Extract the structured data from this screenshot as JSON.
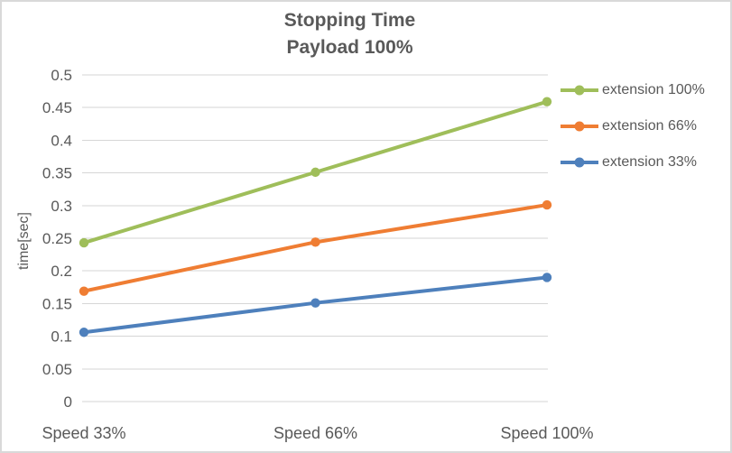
{
  "window": {
    "background": "#FFFFFF",
    "border_color": "#D9D9D9"
  },
  "chart_data": {
    "type": "line",
    "title": "Stopping Time",
    "subtitle": "Payload 100%",
    "xlabel": "",
    "ylabel": "time[sec]",
    "categories": [
      "Speed 33%",
      "Speed 66%",
      "Speed 100%"
    ],
    "series": [
      {
        "name": "extension 100%",
        "color": "#9FBE5A",
        "values": [
          0.243,
          0.351,
          0.459
        ]
      },
      {
        "name": "extension 66%",
        "color": "#EF7D33",
        "values": [
          0.169,
          0.244,
          0.301
        ]
      },
      {
        "name": "extension 33%",
        "color": "#4E80BC",
        "values": [
          0.106,
          0.151,
          0.19
        ]
      }
    ],
    "ylim": [
      0,
      0.5
    ],
    "y_ticks": [
      0,
      0.05,
      0.1,
      0.15,
      0.2,
      0.25,
      0.3,
      0.35,
      0.4,
      0.45,
      0.5
    ],
    "y_tick_labels": [
      "0",
      "0.05",
      "0.1",
      "0.15",
      "0.2",
      "0.25",
      "0.3",
      "0.35",
      "0.4",
      "0.45",
      "0.5"
    ],
    "grid": true,
    "legend_position": "right",
    "marker": "circle",
    "text_color": "#595959",
    "gridline_color": "#D6D6D6"
  }
}
